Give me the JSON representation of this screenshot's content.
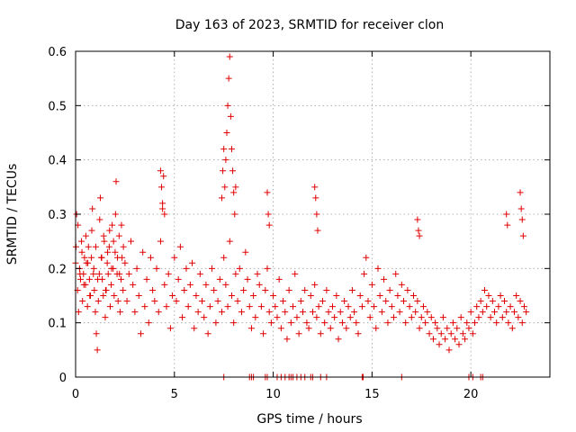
{
  "chart_data": {
    "type": "scatter",
    "title": "Day 163 of 2023, SRMTID for receiver clon",
    "xlabel": "GPS time / hours",
    "ylabel": "SRMTID / TECUs",
    "xlim": [
      0,
      24
    ],
    "ylim": [
      0,
      0.6
    ],
    "xticks": [
      0,
      5,
      10,
      15,
      20
    ],
    "yticks": [
      0,
      0.1,
      0.2,
      0.3,
      0.4,
      0.5,
      0.6
    ],
    "xtick_labels": [
      "0",
      "5",
      "10",
      "15",
      "20"
    ],
    "ytick_labels": [
      "0",
      "0.1",
      "0.2",
      "0.3",
      "0.4",
      "0.5",
      "0.6"
    ],
    "grid": true,
    "marker": "+",
    "color": "#e00000",
    "series": [
      {
        "name": "SRMTID",
        "x": [
          0.0,
          0.05,
          0.1,
          0.15,
          0.2,
          0.25,
          0.3,
          0.35,
          0.4,
          0.45,
          0.5,
          0.55,
          0.6,
          0.65,
          0.7,
          0.75,
          0.8,
          0.85,
          0.9,
          0.95,
          1.0,
          1.05,
          1.1,
          1.15,
          1.2,
          1.25,
          1.3,
          1.35,
          1.4,
          1.45,
          1.5,
          1.55,
          1.6,
          1.65,
          1.7,
          1.75,
          1.8,
          1.85,
          1.9,
          1.95,
          2.0,
          2.05,
          2.1,
          2.15,
          2.2,
          2.25,
          2.3,
          2.35,
          2.4,
          2.5,
          2.6,
          2.7,
          2.8,
          2.9,
          3.0,
          3.1,
          3.2,
          3.3,
          3.4,
          3.5,
          3.6,
          3.7,
          3.8,
          3.9,
          4.0,
          4.1,
          4.2,
          4.3,
          4.4,
          4.5,
          4.6,
          4.7,
          4.8,
          4.9,
          5.0,
          5.1,
          5.2,
          5.3,
          5.4,
          5.5,
          5.6,
          5.7,
          5.8,
          5.9,
          6.0,
          6.1,
          6.2,
          6.3,
          6.4,
          6.5,
          6.6,
          6.7,
          6.8,
          6.9,
          7.0,
          7.1,
          7.2,
          7.3,
          7.4,
          7.5,
          7.6,
          7.7,
          7.8,
          7.9,
          8.0,
          8.1,
          8.2,
          8.3,
          8.4,
          8.5,
          8.6,
          8.7,
          8.8,
          8.9,
          9.0,
          9.1,
          9.2,
          9.3,
          9.4,
          9.5,
          9.6,
          9.7,
          9.8,
          9.9,
          10.0,
          10.1,
          10.2,
          10.3,
          10.4,
          10.5,
          10.6,
          10.7,
          10.8,
          10.9,
          11.0,
          11.1,
          11.2,
          11.3,
          11.4,
          11.5,
          11.6,
          11.7,
          11.8,
          11.9,
          12.0,
          12.1,
          12.2,
          12.3,
          12.4,
          12.5,
          12.6,
          12.7,
          12.8,
          12.9,
          13.0,
          13.1,
          13.2,
          13.3,
          13.4,
          13.5,
          13.6,
          13.7,
          13.8,
          13.9,
          14.0,
          14.1,
          14.2,
          14.3,
          14.4,
          14.5,
          14.6,
          14.7,
          14.8,
          14.9,
          15.0,
          15.1,
          15.2,
          15.3,
          15.4,
          15.5,
          15.6,
          15.7,
          15.8,
          15.9,
          16.0,
          16.1,
          16.2,
          16.3,
          16.4,
          16.5,
          16.6,
          16.7,
          16.8,
          16.9,
          17.0,
          17.1,
          17.2,
          17.3,
          17.4,
          17.5,
          17.6,
          17.7,
          17.8,
          17.9,
          18.0,
          18.1,
          18.2,
          18.3,
          18.4,
          18.5,
          18.6,
          18.7,
          18.8,
          18.9,
          19.0,
          19.1,
          19.2,
          19.3,
          19.4,
          19.5,
          19.6,
          19.7,
          19.8,
          19.9,
          20.0,
          20.1,
          20.2,
          20.3,
          20.4,
          20.5,
          20.6,
          20.7,
          20.8,
          20.9,
          21.0,
          21.1,
          21.2,
          21.3,
          21.4,
          21.5,
          21.6,
          21.7,
          21.8,
          21.9,
          22.0,
          22.1,
          22.2,
          22.3,
          22.4,
          22.5,
          22.6,
          22.7,
          22.8,
          0.02,
          0.12,
          0.22,
          0.32,
          0.42,
          0.52,
          0.62,
          0.72,
          0.82,
          0.92,
          1.02,
          1.12,
          1.22,
          1.32,
          1.42,
          1.52,
          1.62,
          1.72,
          1.82,
          1.92,
          2.02,
          2.12,
          2.22,
          2.32,
          2.42,
          4.3,
          4.35,
          4.4,
          4.45,
          4.5,
          7.4,
          7.45,
          7.5,
          7.55,
          7.6,
          7.65,
          7.7,
          7.75,
          7.8,
          7.85,
          7.9,
          7.95,
          8.0,
          8.05,
          8.1,
          9.7,
          9.75,
          9.8,
          12.1,
          12.15,
          12.2,
          12.25,
          17.3,
          17.35,
          17.4,
          21.8,
          21.85,
          22.5,
          22.55,
          22.6,
          22.65,
          7.5,
          8.8,
          8.9,
          9.0,
          9.6,
          9.7,
          10.2,
          10.4,
          10.6,
          10.8,
          10.9,
          11.0,
          11.2,
          11.4,
          11.6,
          11.9,
          12.0,
          12.4,
          12.7,
          14.5,
          14.55,
          16.5,
          19.9,
          20.1,
          20.5,
          20.6
        ],
        "y": [
          0.21,
          0.3,
          0.16,
          0.12,
          0.2,
          0.18,
          0.25,
          0.14,
          0.19,
          0.22,
          0.17,
          0.21,
          0.13,
          0.24,
          0.18,
          0.15,
          0.22,
          0.31,
          0.19,
          0.16,
          0.12,
          0.08,
          0.05,
          0.14,
          0.19,
          0.33,
          0.22,
          0.18,
          0.15,
          0.25,
          0.11,
          0.16,
          0.21,
          0.19,
          0.24,
          0.13,
          0.17,
          0.28,
          0.2,
          0.15,
          0.23,
          0.36,
          0.19,
          0.14,
          0.26,
          0.12,
          0.18,
          0.22,
          0.16,
          0.21,
          0.14,
          0.19,
          0.25,
          0.17,
          0.12,
          0.2,
          0.15,
          0.08,
          0.23,
          0.13,
          0.18,
          0.1,
          0.22,
          0.16,
          0.14,
          0.2,
          0.12,
          0.25,
          0.32,
          0.17,
          0.13,
          0.19,
          0.09,
          0.15,
          0.22,
          0.14,
          0.18,
          0.24,
          0.11,
          0.16,
          0.2,
          0.13,
          0.17,
          0.21,
          0.09,
          0.15,
          0.12,
          0.19,
          0.14,
          0.11,
          0.17,
          0.08,
          0.13,
          0.2,
          0.16,
          0.1,
          0.14,
          0.18,
          0.12,
          0.22,
          0.17,
          0.13,
          0.25,
          0.15,
          0.1,
          0.19,
          0.14,
          0.2,
          0.12,
          0.16,
          0.23,
          0.18,
          0.13,
          0.09,
          0.15,
          0.11,
          0.19,
          0.17,
          0.13,
          0.08,
          0.16,
          0.2,
          0.12,
          0.1,
          0.15,
          0.13,
          0.11,
          0.18,
          0.09,
          0.14,
          0.12,
          0.07,
          0.16,
          0.1,
          0.13,
          0.19,
          0.11,
          0.08,
          0.14,
          0.12,
          0.16,
          0.1,
          0.09,
          0.15,
          0.12,
          0.17,
          0.11,
          0.13,
          0.08,
          0.14,
          0.1,
          0.16,
          0.12,
          0.09,
          0.13,
          0.11,
          0.15,
          0.07,
          0.12,
          0.1,
          0.14,
          0.09,
          0.13,
          0.11,
          0.16,
          0.12,
          0.1,
          0.08,
          0.15,
          0.13,
          0.19,
          0.22,
          0.14,
          0.11,
          0.17,
          0.13,
          0.09,
          0.2,
          0.15,
          0.12,
          0.18,
          0.14,
          0.1,
          0.16,
          0.13,
          0.11,
          0.19,
          0.15,
          0.12,
          0.17,
          0.14,
          0.1,
          0.16,
          0.13,
          0.11,
          0.15,
          0.12,
          0.14,
          0.09,
          0.11,
          0.13,
          0.1,
          0.12,
          0.08,
          0.11,
          0.07,
          0.1,
          0.09,
          0.06,
          0.08,
          0.11,
          0.07,
          0.09,
          0.05,
          0.08,
          0.1,
          0.07,
          0.09,
          0.06,
          0.11,
          0.08,
          0.07,
          0.1,
          0.09,
          0.12,
          0.08,
          0.1,
          0.13,
          0.11,
          0.14,
          0.12,
          0.16,
          0.13,
          0.15,
          0.11,
          0.14,
          0.12,
          0.1,
          0.13,
          0.15,
          0.11,
          0.14,
          0.12,
          0.1,
          0.13,
          0.09,
          0.12,
          0.15,
          0.11,
          0.14,
          0.1,
          0.13,
          0.12,
          0.24,
          0.28,
          0.19,
          0.23,
          0.17,
          0.26,
          0.21,
          0.15,
          0.27,
          0.2,
          0.24,
          0.18,
          0.29,
          0.22,
          0.26,
          0.16,
          0.23,
          0.27,
          0.2,
          0.25,
          0.3,
          0.22,
          0.19,
          0.28,
          0.24,
          0.38,
          0.35,
          0.31,
          0.37,
          0.3,
          0.33,
          0.38,
          0.42,
          0.35,
          0.4,
          0.45,
          0.5,
          0.55,
          0.59,
          0.48,
          0.42,
          0.38,
          0.34,
          0.3,
          0.35,
          0.34,
          0.3,
          0.28,
          0.35,
          0.33,
          0.3,
          0.27,
          0.29,
          0.27,
          0.26,
          0.3,
          0.28,
          0.34,
          0.31,
          0.29,
          0.26,
          0.0,
          0.0,
          0.0,
          0.0,
          0.0,
          0.0,
          0.0,
          0.0,
          0.0,
          0.0,
          0.0,
          0.0,
          0.0,
          0.0,
          0.0,
          0.0,
          0.0,
          0.0,
          0.0,
          0.0,
          0.0,
          0.0,
          0.0,
          0.0,
          0.0,
          0.0
        ]
      }
    ]
  }
}
